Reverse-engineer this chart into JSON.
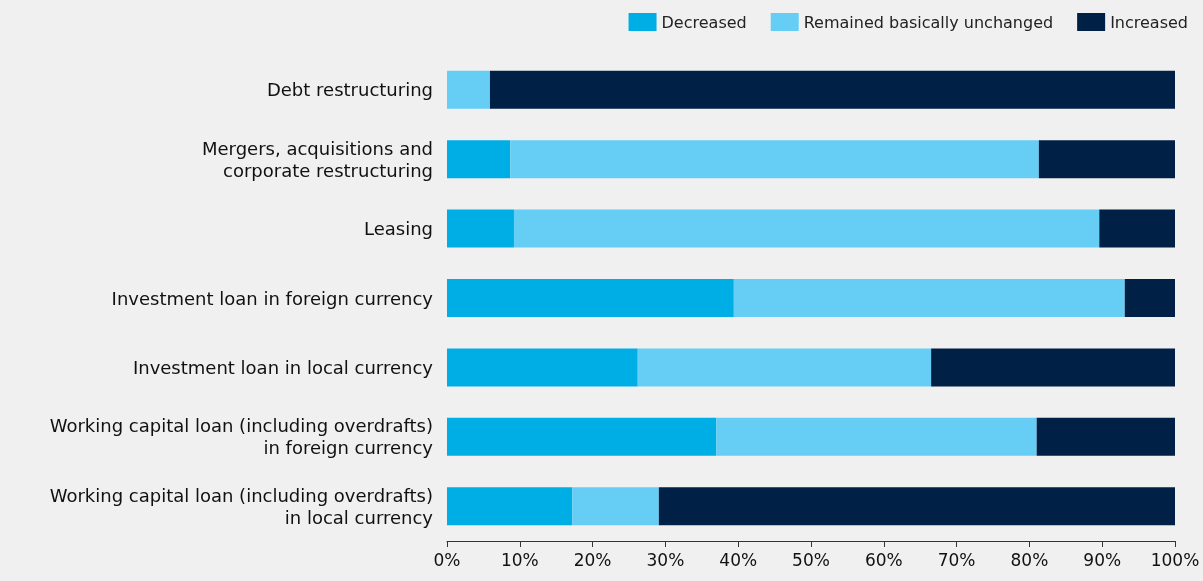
{
  "chart_data": {
    "type": "bar",
    "orientation": "horizontal",
    "stacked": true,
    "legend": "top right",
    "grid": false,
    "categories": [
      "Debt restructuring",
      "Mergers, acquisitions and\ncorporate restructuring",
      "Leasing",
      "Investment loan in foreign currency",
      "Investment loan in local currency",
      "Working capital loan (including overdrafts)\nin foreign currency",
      "Working capital loan (including overdrafts)\nin local currency"
    ],
    "series": [
      {
        "name": "Decreased",
        "color": "#00aee6",
        "values": [
          0,
          8.7,
          9.2,
          39.4,
          26.2,
          37.0,
          17.2
        ]
      },
      {
        "name": "Remained basically unchanged",
        "color": "#66cef5",
        "values": [
          5.9,
          72.6,
          80.4,
          53.7,
          40.3,
          44.0,
          11.9
        ]
      },
      {
        "name": "Increased",
        "color": "#002145",
        "values": [
          94.1,
          18.7,
          10.4,
          6.9,
          33.5,
          19.0,
          70.9
        ]
      }
    ],
    "xlim": [
      0,
      100
    ],
    "xticks": [
      {
        "value": 0,
        "label": "0%"
      },
      {
        "value": 10,
        "label": "10%"
      },
      {
        "value": 20,
        "label": "20%"
      },
      {
        "value": 30,
        "label": "30%"
      },
      {
        "value": 40,
        "label": "40%"
      },
      {
        "value": 50,
        "label": "50%"
      },
      {
        "value": 60,
        "label": "60%"
      },
      {
        "value": 70,
        "label": "70%"
      },
      {
        "value": 80,
        "label": "80%"
      },
      {
        "value": 90,
        "label": "90%"
      },
      {
        "value": 100,
        "label": "100%"
      }
    ]
  }
}
